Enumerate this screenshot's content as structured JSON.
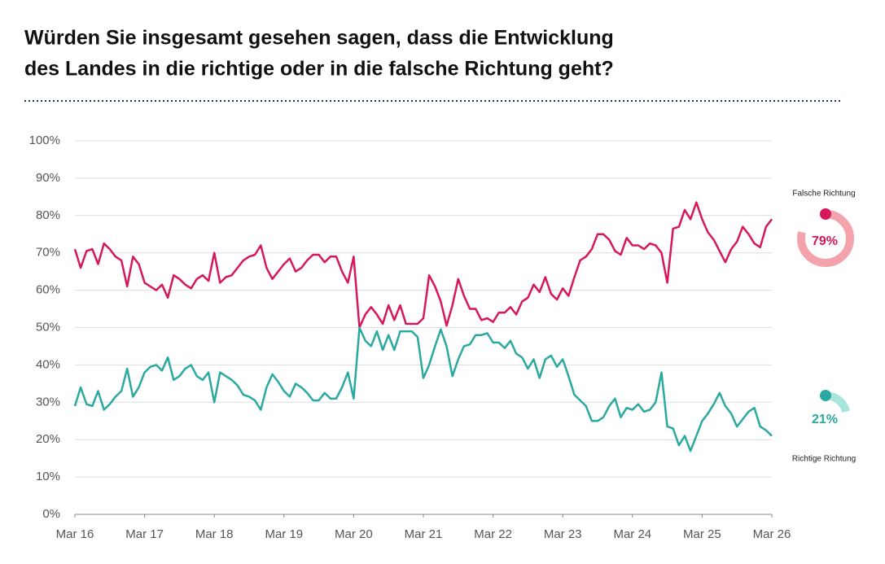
{
  "chart_data": {
    "type": "line",
    "title": [
      "Würden Sie insgesamt gesehen sagen, dass die Entwicklung",
      "des Landes in die richtige oder in die falsche Richtung geht?"
    ],
    "x": [
      "2016-03",
      "2016-04",
      "2016-05",
      "2016-06",
      "2016-07",
      "2016-08",
      "2016-09",
      "2016-10",
      "2016-11",
      "2016-12",
      "2017-01",
      "2017-02",
      "2017-03",
      "2017-04",
      "2017-05",
      "2017-06",
      "2017-07",
      "2017-08",
      "2017-09",
      "2017-10",
      "2017-11",
      "2017-12",
      "2018-01",
      "2018-02",
      "2018-03",
      "2018-04",
      "2018-05",
      "2018-06",
      "2018-07",
      "2018-08",
      "2018-09",
      "2018-10",
      "2018-11",
      "2018-12",
      "2019-01",
      "2019-02",
      "2019-03",
      "2019-04",
      "2019-05",
      "2019-06",
      "2019-07",
      "2019-08",
      "2019-09",
      "2019-10",
      "2019-11",
      "2019-12",
      "2020-01",
      "2020-02",
      "2020-03",
      "2020-04",
      "2020-05",
      "2020-06",
      "2020-07",
      "2020-08",
      "2020-09",
      "2020-10",
      "2020-11",
      "2020-12",
      "2021-01",
      "2021-02",
      "2021-03",
      "2021-04",
      "2021-05",
      "2021-06",
      "2021-07",
      "2021-08",
      "2021-09",
      "2021-10",
      "2021-11",
      "2021-12",
      "2022-01",
      "2022-02",
      "2022-03",
      "2022-04",
      "2022-05",
      "2022-06",
      "2022-07",
      "2022-08",
      "2022-09",
      "2022-10",
      "2022-11",
      "2022-12",
      "2023-01",
      "2023-02",
      "2023-03",
      "2023-04",
      "2023-05",
      "2023-06",
      "2023-07",
      "2023-08",
      "2023-09",
      "2023-10",
      "2023-11",
      "2023-12",
      "2024-01",
      "2024-02",
      "2024-03",
      "2024-04",
      "2024-05",
      "2024-06",
      "2024-07",
      "2024-08",
      "2024-09",
      "2024-10",
      "2024-11",
      "2024-12",
      "2025-01",
      "2025-02",
      "2025-03",
      "2025-04",
      "2025-05",
      "2025-06",
      "2025-07",
      "2025-08",
      "2025-09",
      "2025-10",
      "2025-11",
      "2025-12",
      "2026-01",
      "2026-02",
      "2026-03"
    ],
    "series": [
      {
        "name": "Falsche Richtung",
        "color": "#d6175e",
        "ring_color": "#f4a2ab",
        "values": [
          71,
          66,
          70.5,
          71,
          67,
          72.5,
          71,
          69,
          68,
          61,
          69,
          67,
          62,
          61,
          60,
          61.5,
          58,
          64,
          63,
          61.5,
          60.5,
          63,
          64,
          62.5,
          70,
          62,
          63.5,
          64,
          66,
          68,
          69,
          69.5,
          72,
          66,
          63,
          65,
          67,
          68.5,
          65,
          66,
          68,
          69.5,
          69.5,
          67.5,
          69,
          69,
          65,
          62,
          69,
          50,
          53.5,
          55.5,
          53.5,
          51,
          56,
          52,
          56,
          51,
          51,
          51,
          52.5,
          64,
          61,
          57,
          50.5,
          56,
          63,
          58.5,
          55,
          55,
          52,
          52.5,
          51.5,
          54,
          54,
          55.5,
          53.5,
          57,
          58,
          61.5,
          59.5,
          63.5,
          59,
          57.5,
          60.5,
          58.5,
          63.5,
          68,
          69,
          71,
          75,
          75,
          73.5,
          70.5,
          69.5,
          74,
          72,
          72,
          71,
          72.5,
          72,
          70,
          62,
          76.5,
          77,
          81.5,
          79,
          83.5,
          79,
          75.5,
          73.5,
          70.5,
          67.5,
          71,
          73,
          77,
          75,
          72.5,
          71.5,
          77,
          79
        ],
        "latest": {
          "value": 79,
          "label": "79%"
        }
      },
      {
        "name": "Richtige Richtung",
        "color": "#2aa9a0",
        "ring_color": "#a8e6dc",
        "values": [
          29,
          34,
          29.5,
          29,
          33,
          28,
          29.5,
          31.5,
          33,
          39,
          31.5,
          34,
          38,
          39.5,
          40,
          38.5,
          42,
          36,
          37,
          39,
          40,
          37,
          36,
          38,
          30,
          38,
          37,
          36,
          34.5,
          32,
          31.5,
          30.5,
          28,
          34,
          37.5,
          35.5,
          33,
          31.5,
          35,
          34,
          32.5,
          30.5,
          30.5,
          32.5,
          31,
          31,
          34,
          38,
          31,
          50,
          46.5,
          45,
          49,
          44,
          48,
          44,
          49,
          49,
          49,
          47.5,
          36.5,
          40,
          45,
          49.5,
          45,
          37,
          41.5,
          45,
          45.5,
          48,
          48,
          48.5,
          46,
          46,
          44.5,
          46.5,
          43,
          42,
          39,
          41.5,
          36.5,
          41.5,
          42.5,
          39.5,
          41.5,
          37,
          32,
          30.5,
          29,
          25,
          25,
          26,
          29,
          31,
          26,
          28.5,
          28,
          29.5,
          27.5,
          28,
          30,
          38,
          23.5,
          23,
          18.5,
          21,
          17,
          21,
          25,
          27,
          29.5,
          32.5,
          29,
          27,
          23.5,
          25.5,
          27.5,
          28.5,
          23.5,
          22.5,
          21
        ],
        "latest": {
          "value": 21,
          "label": "21%"
        }
      }
    ],
    "xlim": [
      "2016-03",
      "2026-03"
    ],
    "xticks": [
      {
        "value": "2016-03",
        "label": "Mar 16"
      },
      {
        "value": "2017-03",
        "label": "Mar 17"
      },
      {
        "value": "2018-03",
        "label": "Mar 18"
      },
      {
        "value": "2019-03",
        "label": "Mar 19"
      },
      {
        "value": "2020-03",
        "label": "Mar 20"
      },
      {
        "value": "2021-03",
        "label": "Mar 21"
      },
      {
        "value": "2022-03",
        "label": "Mar 22"
      },
      {
        "value": "2023-03",
        "label": "Mar 23"
      },
      {
        "value": "2024-03",
        "label": "Mar 24"
      },
      {
        "value": "2025-03",
        "label": "Mar 25"
      },
      {
        "value": "2026-03",
        "label": "Mar 26"
      }
    ],
    "ylim": [
      0,
      100
    ],
    "yticks": [
      {
        "value": 0,
        "label": "0%"
      },
      {
        "value": 10,
        "label": "10%"
      },
      {
        "value": 20,
        "label": "20%"
      },
      {
        "value": 30,
        "label": "30%"
      },
      {
        "value": 40,
        "label": "40%"
      },
      {
        "value": 50,
        "label": "50%"
      },
      {
        "value": 60,
        "label": "60%"
      },
      {
        "value": 70,
        "label": "70%"
      },
      {
        "value": 80,
        "label": "80%"
      },
      {
        "value": 90,
        "label": "90%"
      },
      {
        "value": 100,
        "label": "100%"
      }
    ],
    "grid": true
  }
}
